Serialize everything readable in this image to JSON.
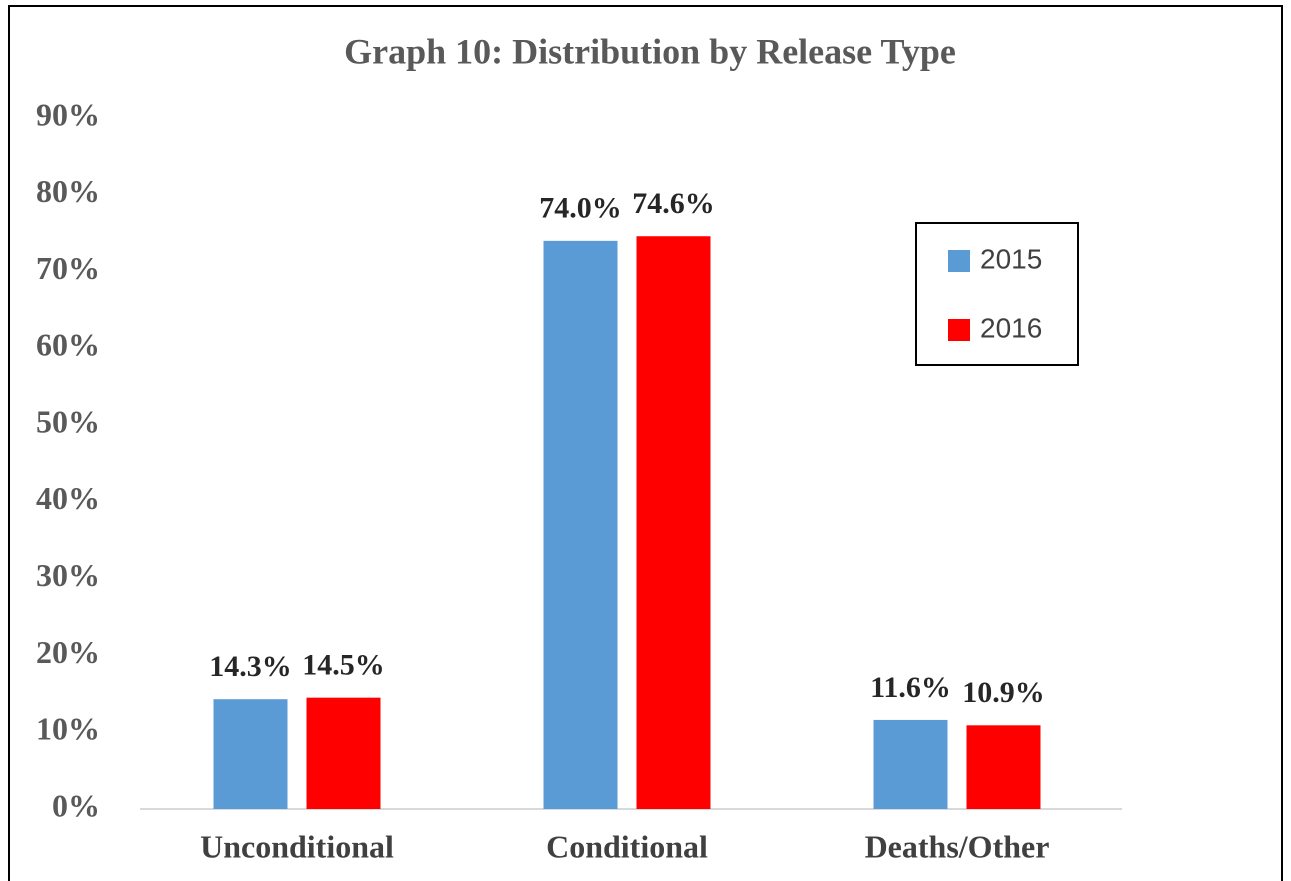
{
  "chart_data": {
    "type": "bar",
    "title": "Graph 10: Distribution by Release Type",
    "categories": [
      "Unconditional",
      "Conditional",
      "Deaths/Other"
    ],
    "series": [
      {
        "name": "2015",
        "color": "#5b9bd5",
        "values": [
          14.3,
          74.0,
          11.6
        ],
        "value_labels": [
          "14.3%",
          "74.0%",
          "11.6%"
        ]
      },
      {
        "name": "2016",
        "color": "#ff0000",
        "values": [
          14.5,
          74.6,
          10.9
        ],
        "value_labels": [
          "14.5%",
          "74.6%",
          "10.9%"
        ]
      }
    ],
    "ylim": [
      0,
      90
    ],
    "yticks": [
      {
        "value": 0,
        "label": "0%"
      },
      {
        "value": 10,
        "label": "10%"
      },
      {
        "value": 20,
        "label": "20%"
      },
      {
        "value": 30,
        "label": "30%"
      },
      {
        "value": 40,
        "label": "40%"
      },
      {
        "value": 50,
        "label": "50%"
      },
      {
        "value": 60,
        "label": "60%"
      },
      {
        "value": 70,
        "label": "70%"
      },
      {
        "value": 80,
        "label": "80%"
      },
      {
        "value": 90,
        "label": "90%"
      }
    ],
    "grid": false,
    "legend": "upper right"
  }
}
